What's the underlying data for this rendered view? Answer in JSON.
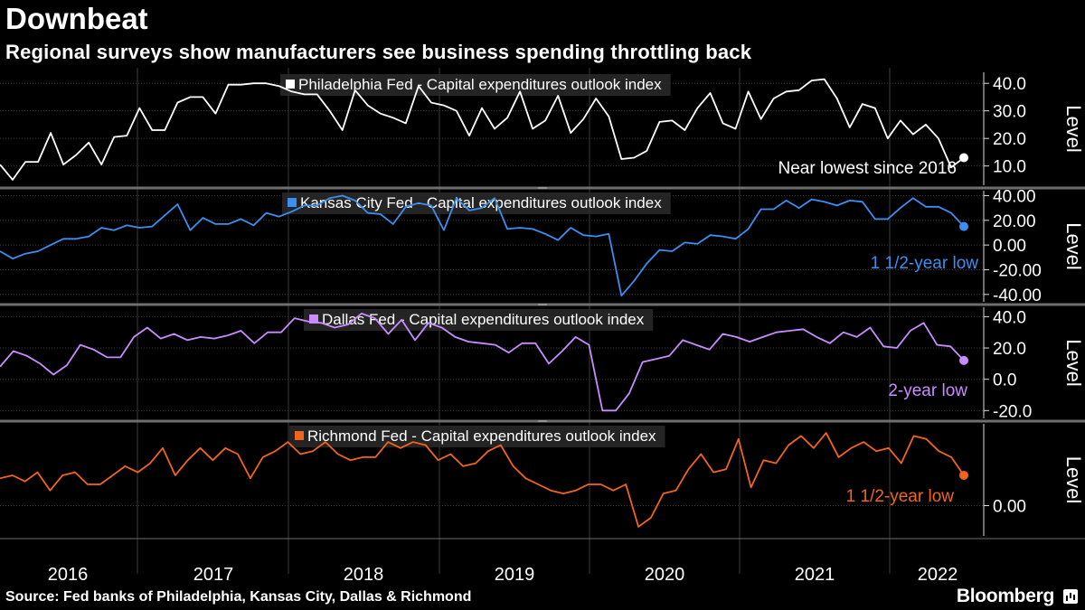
{
  "title": "Downbeat",
  "subtitle": "Regional surveys show manufacturers see business spending throttling back",
  "source": "Source: Fed banks of Philadelphia, Kansas City, Dallas & Richmond",
  "brand": "Bloomberg",
  "colors": {
    "background": "#000000",
    "philadelphia": "#ffffff",
    "kansas_city": "#3a8ff0",
    "dallas": "#c98cff",
    "richmond": "#f26419",
    "grid": "#3a3a3a",
    "label_box": "#2a2a2a"
  },
  "chart_data": {
    "type": "line",
    "x_label": "",
    "x_tick_labels": [
      "2016",
      "2017",
      "2018",
      "2019",
      "2020",
      "2021",
      "2022"
    ],
    "x_start": "2016-01",
    "x_end": "2022-09",
    "panels": [
      {
        "name": "Philadelphia Fed - Capital expenditures outlook index",
        "ylabel": "Level",
        "yticks": [
          "40.0",
          "30.0",
          "20.0",
          "10.0"
        ],
        "ytick_values": [
          40,
          30,
          20,
          10
        ],
        "ylim": [
          3,
          44
        ],
        "annotation": "Near lowest since 2016",
        "values": [
          10.5,
          5,
          11.5,
          11.5,
          22,
          10.5,
          14,
          18.5,
          10.5,
          20.5,
          21,
          31,
          23,
          23,
          33,
          35,
          35,
          29,
          39.5,
          39.5,
          40,
          40,
          39,
          37,
          36,
          36,
          30,
          23,
          37.5,
          32,
          29,
          27.5,
          25.5,
          39,
          33,
          32,
          30,
          21,
          31,
          23.5,
          27.5,
          37,
          23.5,
          26.5,
          35.5,
          22,
          27,
          34.5,
          28,
          12.5,
          13,
          15.5,
          26,
          26.5,
          23,
          31,
          36.5,
          25.5,
          23.5,
          37,
          27,
          34.5,
          37,
          37.5,
          41,
          41.5,
          34.5,
          24,
          32.5,
          31,
          20,
          26.5,
          21.5,
          25,
          20,
          9.5,
          13
        ]
      },
      {
        "name": "Kansas City Fed - Capital expenditures outlook index",
        "ylabel": "Level",
        "yticks": [
          "40.00",
          "20.00",
          "0.00",
          "-20.00",
          "-40.00"
        ],
        "ytick_values": [
          40,
          20,
          0,
          -20,
          -40
        ],
        "ylim": [
          -46,
          44
        ],
        "annotation": "1 1/2-year low",
        "values": [
          -5,
          -11,
          -7,
          -5,
          0,
          5,
          5,
          7,
          14,
          12,
          16,
          14,
          15,
          24,
          33,
          12,
          22,
          17,
          17,
          21,
          16,
          26,
          23,
          27,
          32,
          32,
          38,
          40,
          36,
          26,
          25,
          17,
          31,
          34,
          32,
          12,
          38,
          28,
          30,
          38,
          13,
          14,
          13,
          9,
          4,
          14,
          8,
          7,
          9,
          -41,
          -29,
          -15,
          -4,
          -5,
          2,
          1,
          8,
          7,
          5,
          13,
          29,
          29,
          36,
          30,
          37,
          35,
          32,
          36,
          35,
          21,
          21,
          30,
          38,
          31,
          31,
          26,
          15
        ]
      },
      {
        "name": "Dallas Fed - Capital expenditures outlook index",
        "ylabel": "Level",
        "yticks": [
          "40.0",
          "20.0",
          "0.0",
          "-20.0"
        ],
        "ytick_values": [
          40,
          20,
          0,
          -20
        ],
        "ylim": [
          -25,
          46
        ],
        "annotation": "2-year low",
        "values": [
          8,
          18,
          15,
          10,
          3,
          9,
          22,
          19,
          14,
          14,
          27,
          33,
          26,
          29,
          25,
          27,
          26,
          28,
          31,
          23,
          30,
          30,
          39,
          37,
          36,
          33,
          35,
          42,
          39,
          29,
          38,
          25,
          36,
          33,
          27,
          24,
          23,
          22,
          17,
          23,
          23,
          10,
          18,
          27,
          22,
          -20,
          -20,
          -9,
          11,
          13,
          15,
          25,
          22,
          19,
          29,
          27,
          24,
          27,
          30,
          31,
          32,
          27,
          23,
          30,
          27,
          33,
          21,
          20,
          31,
          36,
          22,
          21,
          12
        ]
      },
      {
        "name": "Richmond Fed - Capital expenditures outlook index",
        "ylabel": "Level",
        "yticks": [
          "0.00"
        ],
        "ytick_values": [
          0
        ],
        "ylim": [
          -10,
          27
        ],
        "annotation": "1 1/2-year low",
        "values": [
          9,
          10,
          8,
          11,
          5,
          10,
          11,
          7,
          7,
          10,
          13,
          11,
          14,
          19,
          10,
          15,
          19,
          15,
          19,
          17,
          9,
          16,
          18,
          21,
          17,
          18,
          21,
          17,
          15,
          16,
          16,
          21,
          19,
          21,
          20,
          15,
          17,
          13,
          14,
          18,
          20,
          13,
          9,
          7,
          5,
          4,
          5,
          7,
          7,
          5,
          7,
          -7,
          -4,
          4,
          5,
          12,
          17,
          11,
          12,
          22,
          6,
          15,
          14,
          20,
          23,
          19,
          24,
          16,
          19,
          21,
          18,
          19,
          14,
          23,
          22,
          18,
          16,
          10
        ]
      }
    ]
  }
}
